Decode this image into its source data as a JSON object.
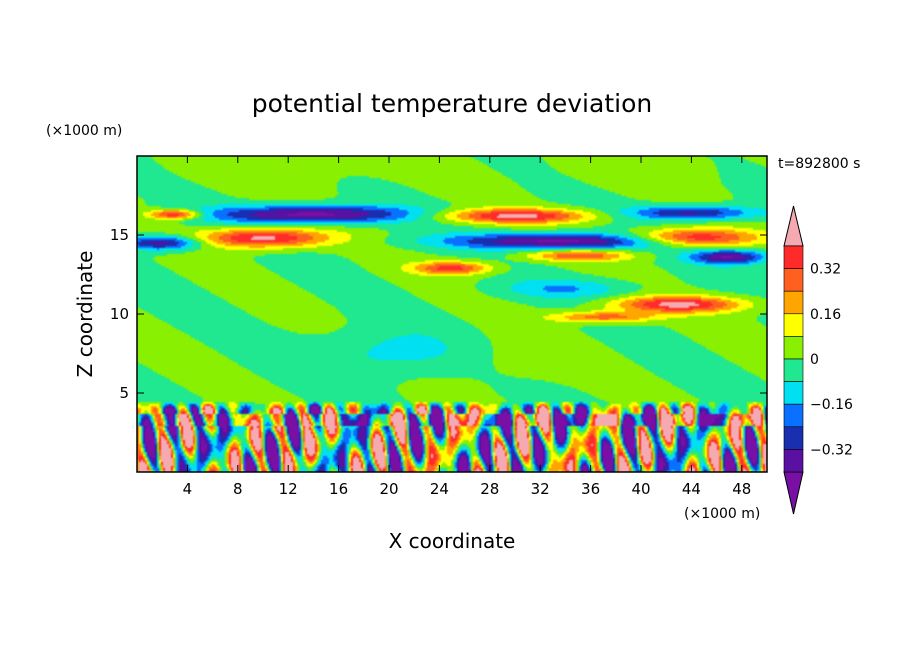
{
  "chart_data": {
    "type": "heatmap",
    "title": "potential temperature deviation",
    "xlabel": "X coordinate",
    "ylabel": "Z coordinate",
    "x_unit": "(×1000 m)",
    "y_unit": "(×1000 m)",
    "time_label": "t=892800 s",
    "xlim": [
      0,
      50
    ],
    "ylim": [
      0,
      20
    ],
    "x_ticks": [
      4,
      8,
      12,
      16,
      20,
      24,
      28,
      32,
      36,
      40,
      44,
      48
    ],
    "y_ticks": [
      5,
      10,
      15
    ],
    "colorbar": {
      "levels": [
        -0.4,
        -0.32,
        -0.24,
        -0.16,
        -0.08,
        0,
        0.08,
        0.16,
        0.24,
        0.32,
        0.4
      ],
      "labeled_ticks": [
        0.32,
        0.16,
        0,
        -0.16,
        -0.32
      ],
      "tick_labels": [
        "0.32",
        "0.16",
        "0",
        "−0.16",
        "−0.32"
      ],
      "colors": [
        "#7a0fa6",
        "#5a10a0",
        "#1a2fb0",
        "#0a70ff",
        "#00e0f0",
        "#20e890",
        "#88f000",
        "#ffff00",
        "#ffa500",
        "#ff6020",
        "#ff2a2a",
        "#f4aab0"
      ]
    },
    "features": [
      {
        "name": "upper-pos-left",
        "x": 10,
        "z": 14.8,
        "sx": 5,
        "sz": 0.6,
        "value": 0.45
      },
      {
        "name": "upper-pos-left-b",
        "x": 3,
        "z": 16.3,
        "sx": 2,
        "sz": 0.3,
        "value": 0.42
      },
      {
        "name": "upper-pos-mid",
        "x": 30,
        "z": 16.2,
        "sx": 6,
        "sz": 0.45,
        "value": 0.42
      },
      {
        "name": "upper-pos-mid-b",
        "x": 25,
        "z": 12.9,
        "sx": 3,
        "sz": 0.4,
        "value": 0.35
      },
      {
        "name": "upper-pos-right",
        "x": 44,
        "z": 14.8,
        "sx": 5,
        "sz": 0.55,
        "value": 0.45
      },
      {
        "name": "upper-pos-ml",
        "x": 35,
        "z": 13.7,
        "sx": 4,
        "sz": 0.35,
        "value": 0.3
      },
      {
        "name": "upper-neg-left",
        "x": 14,
        "z": 16.3,
        "sx": 8,
        "sz": 0.55,
        "value": -0.45
      },
      {
        "name": "upper-neg-left-b",
        "x": 2,
        "z": 14.5,
        "sx": 3,
        "sz": 0.45,
        "value": -0.4
      },
      {
        "name": "upper-neg-mid",
        "x": 34,
        "z": 14.6,
        "sx": 9,
        "sz": 0.5,
        "value": -0.45
      },
      {
        "name": "upper-neg-right",
        "x": 44,
        "z": 16.4,
        "sx": 5,
        "sz": 0.45,
        "value": -0.35
      },
      {
        "name": "upper-neg-right-b",
        "x": 47,
        "z": 13.6,
        "sx": 3,
        "sz": 0.45,
        "value": -0.4
      },
      {
        "name": "mid-pos-right",
        "x": 43,
        "z": 10.6,
        "sx": 5,
        "sz": 0.5,
        "value": 0.42
      },
      {
        "name": "mid-pos-right-b",
        "x": 37,
        "z": 9.8,
        "sx": 4,
        "sz": 0.35,
        "value": 0.3
      },
      {
        "name": "top-pos-left",
        "x": 12,
        "z": 19.5,
        "sx": 10,
        "sz": 1.5,
        "value": 0.05
      },
      {
        "name": "top-pos-right",
        "x": 40,
        "z": 19.5,
        "sx": 8,
        "sz": 1.5,
        "value": 0.05
      },
      {
        "name": "mid-neg-a",
        "x": 20,
        "z": 7.5,
        "sx": 6,
        "sz": 1.5,
        "value": -0.12
      },
      {
        "name": "mid-neg-b",
        "x": 34,
        "z": 11.6,
        "sx": 5,
        "sz": 0.6,
        "value": -0.15
      },
      {
        "name": "mid-pos-a",
        "x": 30,
        "z": 7,
        "sx": 5,
        "sz": 1.5,
        "value": 0.05
      }
    ],
    "lower_layer": {
      "z_top": 4.5,
      "z_band": 3.3,
      "amplitude": 0.5
    }
  }
}
